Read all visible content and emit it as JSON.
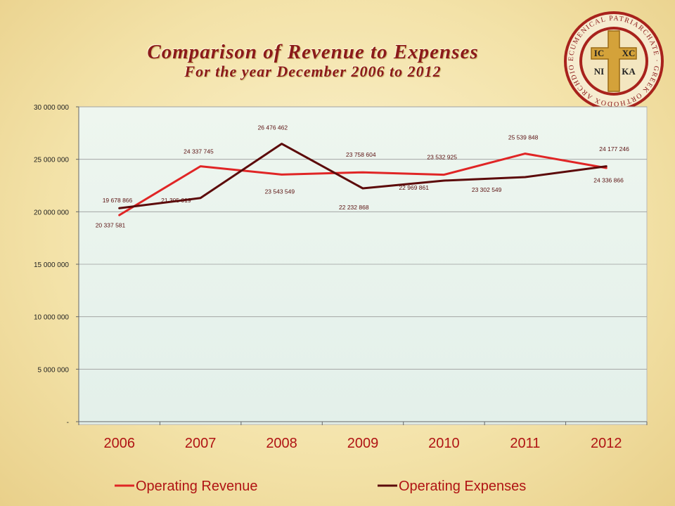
{
  "title": "Comparison of Revenue to Expenses",
  "subtitle": "For the year December 2006 to 2012",
  "seal": {
    "ring_text": "ECUMENICAL PATRIARCHATE · GREEK ORTHODOX ARCHDIOCESE OF AMERICA",
    "ic": "IC",
    "xc": "XC",
    "ni": "NI",
    "ka": "KA"
  },
  "colors": {
    "revenue": "#e02525",
    "expenses": "#5c0a0a",
    "title": "#8b1a1a",
    "x_labels": "#b01414"
  },
  "chart_data": {
    "type": "line",
    "title": "Comparison of Revenue to Expenses",
    "subtitle": "For the year December 2006 to 2012",
    "categories": [
      "2006",
      "2007",
      "2008",
      "2009",
      "2010",
      "2011",
      "2012"
    ],
    "ylim": [
      0,
      30000000
    ],
    "yticks": [
      0,
      5000000,
      10000000,
      15000000,
      20000000,
      25000000,
      30000000
    ],
    "ytick_labels": [
      "-",
      "5 000 000",
      "10 000 000",
      "15 000 000",
      "20 000 000",
      "25 000 000",
      "30 000 000"
    ],
    "grid": true,
    "legend_position": "bottom",
    "series": [
      {
        "name": "Operating Revenue",
        "color": "#e02525",
        "values": [
          19678866,
          24337745,
          23543549,
          23758604,
          23532925,
          25539848,
          24177246
        ],
        "labels": [
          "19 678 866",
          "24 337 745",
          "23 543 549",
          "23 758 604",
          "23 532 925",
          "25 539 848",
          "24 177 246"
        ]
      },
      {
        "name": "Operating Expenses",
        "color": "#5c0a0a",
        "values": [
          20337581,
          21305019,
          26476462,
          22232868,
          22969861,
          23302549,
          24336866
        ],
        "labels": [
          "20 337 581",
          "21 305 019",
          "26 476 462",
          "22 232 868",
          "22 969 861",
          "23 302 549",
          "24 336 866"
        ]
      }
    ]
  }
}
